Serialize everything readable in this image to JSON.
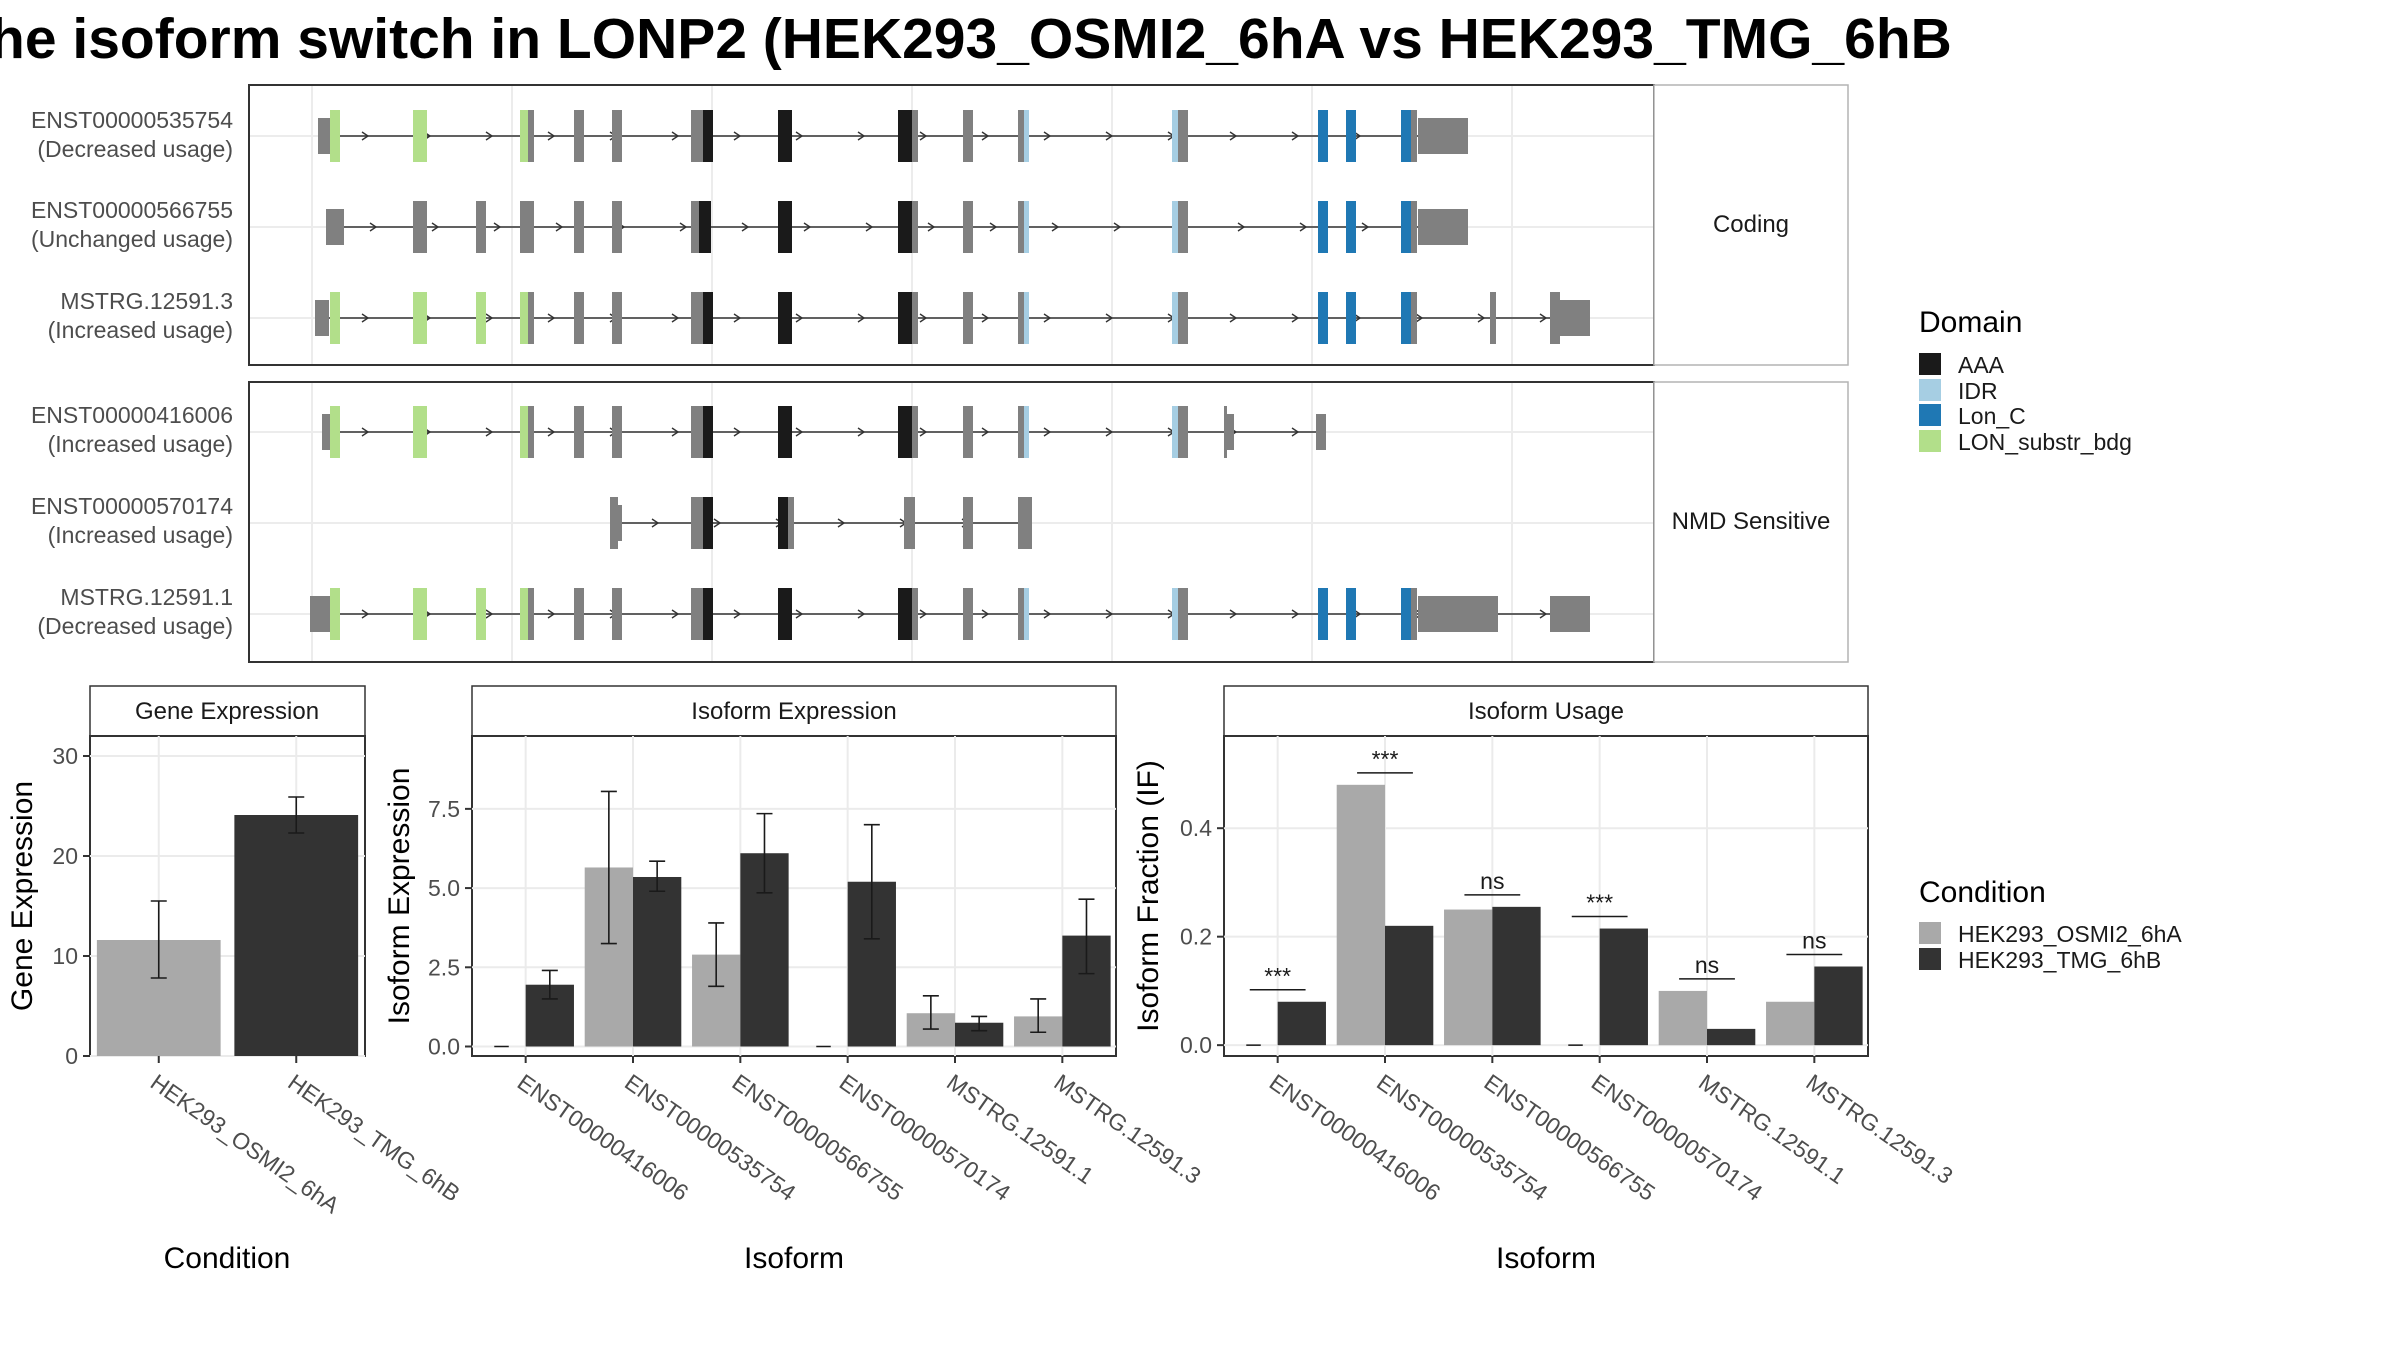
{
  "title": "he isoform switch in LONP2 (HEK293_OSMI2_6hA vs HEK293_TMG_6hB",
  "structure": {
    "groups": [
      {
        "label": "Coding",
        "transcripts": [
          {
            "name": "ENST00000535754",
            "usage": "(Decreased usage)"
          },
          {
            "name": "ENST00000566755",
            "usage": "(Unchanged usage)"
          },
          {
            "name": "MSTRG.12591.3",
            "usage": "(Increased usage)"
          }
        ]
      },
      {
        "label": "NMD Sensitive",
        "transcripts": [
          {
            "name": "ENST00000416006",
            "usage": "(Increased usage)"
          },
          {
            "name": "ENST00000570174",
            "usage": "(Increased usage)"
          },
          {
            "name": "MSTRG.12591.1",
            "usage": "(Decreased usage)"
          }
        ]
      }
    ]
  },
  "legend_domain": {
    "title": "Domain",
    "items": [
      {
        "label": "AAA",
        "color": "#1a1a1a"
      },
      {
        "label": "IDR",
        "color": "#a6cee3"
      },
      {
        "label": "Lon_C",
        "color": "#1f78b4"
      },
      {
        "label": "LON_substr_bdg",
        "color": "#b2df8a"
      }
    ]
  },
  "legend_condition": {
    "title": "Condition",
    "items": [
      {
        "label": "HEK293_OSMI2_6hA",
        "color": "#a9a9a9"
      },
      {
        "label": "HEK293_TMG_6hB",
        "color": "#333333"
      }
    ]
  },
  "chart_data": [
    {
      "type": "bar",
      "title": "Gene Expression",
      "xlabel": "Condition",
      "ylabel": "Gene Expression",
      "ylim": [
        0,
        32
      ],
      "yticks": [
        0,
        10,
        20,
        30
      ],
      "categories": [
        "HEK293_OSMI2_6hA",
        "HEK293_TMG_6hB"
      ],
      "values": [
        11.6,
        24.1
      ],
      "error": [
        [
          7.8,
          15.5
        ],
        [
          22.3,
          25.9
        ]
      ],
      "colors": [
        "#a9a9a9",
        "#333333"
      ]
    },
    {
      "type": "bar",
      "title": "Isoform Expression",
      "xlabel": "Isoform",
      "ylabel": "Isoform Expression",
      "ylim": [
        -0.3,
        9.8
      ],
      "yticks": [
        "0.0",
        "2.5",
        "5.0",
        "7.5"
      ],
      "categories": [
        "ENST00000416006",
        "ENST00000535754",
        "ENST00000566755",
        "ENST00000570174",
        "MSTRG.12591.1",
        "MSTRG.12591.3"
      ],
      "series": [
        {
          "name": "HEK293_OSMI2_6hA",
          "values": [
            0.0,
            5.65,
            2.9,
            0.0,
            1.05,
            0.95
          ],
          "error": [
            [
              0.0,
              0.0
            ],
            [
              3.25,
              8.05
            ],
            [
              1.9,
              3.9
            ],
            [
              0.0,
              0.0
            ],
            [
              0.55,
              1.6
            ],
            [
              0.45,
              1.5
            ]
          ]
        },
        {
          "name": "HEK293_TMG_6hB",
          "values": [
            1.95,
            5.35,
            6.1,
            5.2,
            0.75,
            3.5
          ],
          "error": [
            [
              1.5,
              2.4
            ],
            [
              4.9,
              5.85
            ],
            [
              4.85,
              7.35
            ],
            [
              3.4,
              7.0
            ],
            [
              0.5,
              0.95
            ],
            [
              2.3,
              4.65
            ]
          ]
        }
      ]
    },
    {
      "type": "bar",
      "title": "Isoform Usage",
      "xlabel": "Isoform",
      "ylabel": "Isoform Fraction (IF)",
      "ylim": [
        -0.02,
        0.57
      ],
      "yticks": [
        "0.0",
        "0.2",
        "0.4"
      ],
      "categories": [
        "ENST00000416006",
        "ENST00000535754",
        "ENST00000566755",
        "ENST00000570174",
        "MSTRG.12591.1",
        "MSTRG.12591.3"
      ],
      "series": [
        {
          "name": "HEK293_OSMI2_6hA",
          "values": [
            0.0,
            0.48,
            0.25,
            0.0,
            0.1,
            0.08
          ]
        },
        {
          "name": "HEK293_TMG_6hB",
          "values": [
            0.08,
            0.22,
            0.255,
            0.215,
            0.03,
            0.145
          ]
        }
      ],
      "significance": [
        "***",
        "***",
        "ns",
        "***",
        "ns",
        "ns"
      ]
    }
  ]
}
